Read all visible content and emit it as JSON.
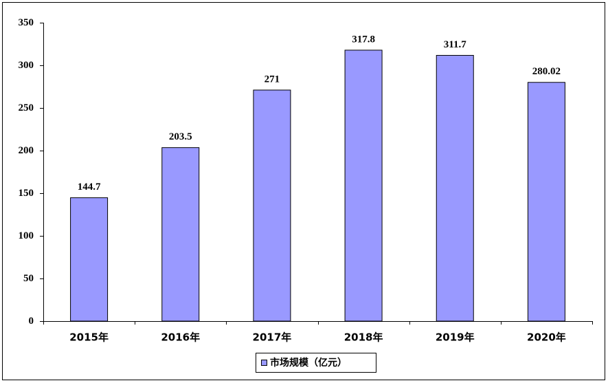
{
  "chart_data": {
    "type": "bar",
    "categories": [
      "2015年",
      "2016年",
      "2017年",
      "2018年",
      "2019年",
      "2020年"
    ],
    "series": [
      {
        "name": "市场规模（亿元）",
        "color": "#9999ff",
        "values": [
          144.7,
          203.5,
          271,
          317.8,
          311.7,
          280.02
        ]
      }
    ],
    "ylim": [
      0,
      350
    ],
    "yticks": [
      0,
      50,
      100,
      150,
      200,
      250,
      300,
      350
    ],
    "grid": false,
    "legend": "bottom"
  }
}
